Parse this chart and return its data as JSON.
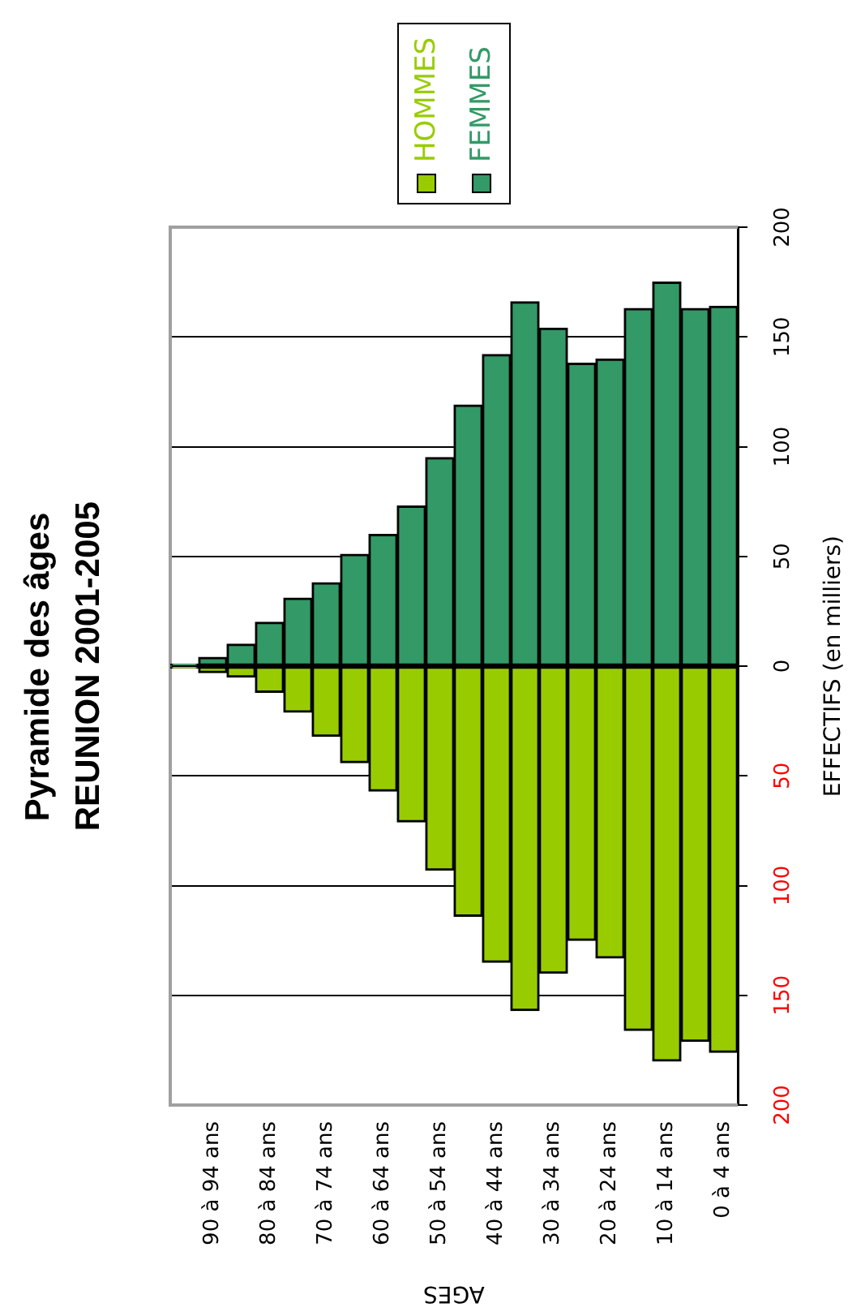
{
  "chart_data": {
    "type": "bar",
    "title": "Pyramide des âges\nREUNION 2001-2005",
    "xlabel": "AGES",
    "ylabel": "EFFECTIFS (en milliers)",
    "categories": [
      null,
      "90 à 94 ans",
      null,
      "80 à 84 ans",
      null,
      "70 à 74 ans",
      null,
      "60 à 64 ans",
      null,
      "50 à 54 ans",
      null,
      "40 à 44 ans",
      null,
      "30 à 34 ans",
      null,
      "20 à 24 ans",
      null,
      "10 à 14 ans",
      null,
      "0 à 4 ans"
    ],
    "series": [
      {
        "name": "HOMMES",
        "color": "#99cc00",
        "values": [
          -1,
          -3,
          -5,
          -12,
          -21,
          -32,
          -44,
          -57,
          -71,
          -93,
          -114,
          -135,
          -157,
          -140,
          -125,
          -133,
          -166,
          -180,
          -171,
          -176
        ]
      },
      {
        "name": "FEMMES",
        "color": "#339966",
        "values": [
          1,
          4,
          10,
          20,
          31,
          38,
          51,
          60,
          73,
          95,
          119,
          142,
          166,
          154,
          138,
          140,
          163,
          175,
          163,
          164
        ]
      }
    ],
    "stacked": true,
    "ylim": [
      -200,
      200
    ],
    "yticks": [
      {
        "value": -200,
        "label": "200"
      },
      {
        "value": -150,
        "label": "150"
      },
      {
        "value": -100,
        "label": "100"
      },
      {
        "value": -50,
        "label": "50"
      },
      0,
      50,
      100,
      150,
      200
    ],
    "grid": "y",
    "legend": "top"
  }
}
